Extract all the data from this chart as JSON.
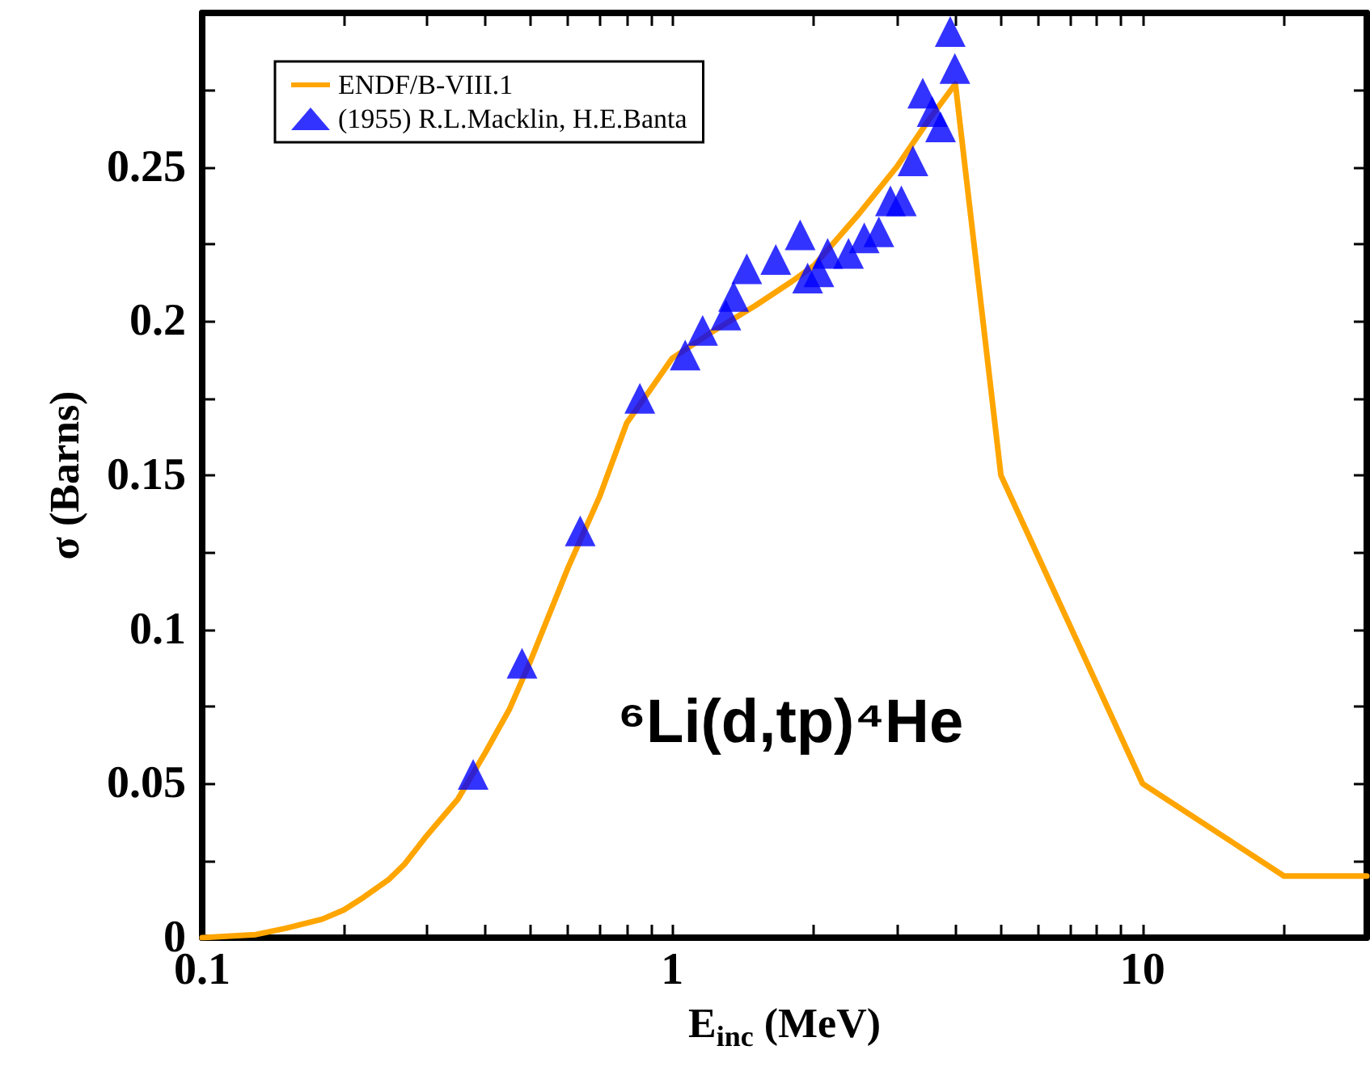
{
  "chart_data": {
    "type": "line",
    "xlabel": "E$_{inc}$ (MeV)",
    "ylabel": "σ (Barns)",
    "annotations": [
      "⁶Li(d,tp)⁴He"
    ],
    "log": "x",
    "grid": false,
    "legend": "top left",
    "xlim": [
      0.1,
      30
    ],
    "xticks": [
      0.1,
      {
        "value": 0.2,
        "label": null
      },
      {
        "value": 0.3,
        "label": null
      },
      {
        "value": 0.4,
        "label": null
      },
      {
        "value": 0.5,
        "label": null
      },
      {
        "value": 0.6,
        "label": null
      },
      {
        "value": 0.7,
        "label": null
      },
      {
        "value": 0.8,
        "label": null
      },
      {
        "value": 0.9,
        "label": null
      },
      1,
      {
        "value": 2,
        "label": null
      },
      {
        "value": 3,
        "label": null
      },
      {
        "value": 4,
        "label": null
      },
      {
        "value": 5,
        "label": null
      },
      {
        "value": 6,
        "label": null
      },
      {
        "value": 7,
        "label": null
      },
      {
        "value": 8,
        "label": null
      },
      {
        "value": 9,
        "label": null
      },
      10,
      {
        "value": 20,
        "label": null
      }
    ],
    "ylim": [
      0,
      0.3
    ],
    "yticks": [
      0,
      {
        "value": 0.025,
        "label": null
      },
      0.05,
      {
        "value": 0.075,
        "label": null
      },
      0.1,
      {
        "value": 0.125,
        "label": null
      },
      0.15,
      {
        "value": 0.175,
        "label": null
      },
      0.2,
      {
        "value": 0.225,
        "label": null
      },
      0.25,
      {
        "value": 0.275,
        "label": null
      }
    ],
    "series": [
      {
        "name": "ENDF/B-VIII.1",
        "marker": "none",
        "line_style": "solid",
        "color": "#ffa500",
        "x": [
          0.1,
          0.13,
          0.15,
          0.18,
          0.2,
          0.22,
          0.25,
          0.27,
          0.3,
          0.35,
          0.4,
          0.45,
          0.5,
          0.6,
          0.7,
          0.8,
          0.9,
          1.0,
          1.2,
          1.5,
          1.8,
          2.0,
          2.5,
          3.0,
          3.5,
          4.0,
          5,
          10,
          20,
          30
        ],
        "values": [
          0,
          0.001,
          0.003,
          0.006,
          0.009,
          0.013,
          0.019,
          0.024,
          0.033,
          0.045,
          0.06,
          0.074,
          0.09,
          0.12,
          0.143,
          0.167,
          0.178,
          0.188,
          0.196,
          0.205,
          0.213,
          0.218,
          0.235,
          0.25,
          0.265,
          0.277,
          0.15,
          0.05,
          0.02,
          0.02
        ]
      },
      {
        "name": "(1955) R.L.Macklin, H.E.Banta",
        "type": "scatter",
        "marker": "triangle",
        "color": "#0000ff",
        "x": [
          0.377,
          0.479,
          0.637,
          0.853,
          1.065,
          1.16,
          1.3,
          1.35,
          1.44,
          1.66,
          1.87,
          1.94,
          2.05,
          2.14,
          2.37,
          2.56,
          2.75,
          2.91,
          3.07,
          3.25,
          3.41,
          3.57,
          3.72,
          3.9,
          3.99
        ],
        "values": [
          0.053,
          0.089,
          0.132,
          0.175,
          0.189,
          0.197,
          0.202,
          0.208,
          0.217,
          0.22,
          0.228,
          0.214,
          0.216,
          0.222,
          0.222,
          0.227,
          0.229,
          0.239,
          0.239,
          0.252,
          0.274,
          0.268,
          0.263,
          0.294,
          0.282
        ]
      }
    ]
  }
}
